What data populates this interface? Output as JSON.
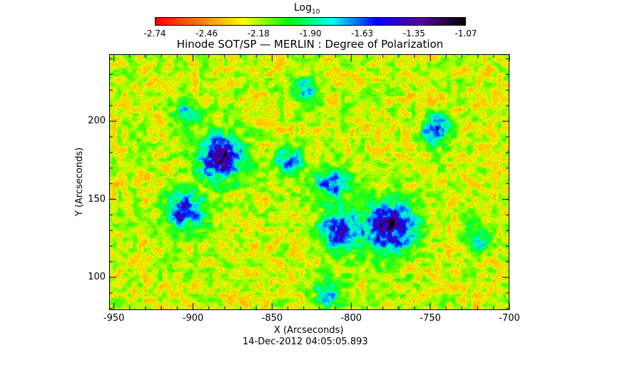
{
  "chart_data": {
    "type": "heatmap",
    "title": "Hinode SOT/SP — MERLIN : Degree of Polarization",
    "xlabel": "X (Arcseconds)",
    "ylabel": "Y (Arcseconds)",
    "xlim": [
      -953,
      -700
    ],
    "ylim": [
      79,
      243
    ],
    "xticks": [
      "-950",
      "-900",
      "-850",
      "-800",
      "-750",
      "-700"
    ],
    "xtick_values": [
      -950,
      -900,
      -850,
      -800,
      -750,
      -700
    ],
    "yticks": [
      "100",
      "150",
      "200"
    ],
    "ytick_values": [
      100,
      150,
      200
    ],
    "colorbar": {
      "label": "Log",
      "label_sub": "10",
      "range": [
        -2.74,
        -1.07
      ],
      "ticks": [
        "-2.74",
        "-2.46",
        "-2.18",
        "-1.90",
        "-1.63",
        "-1.35",
        "-1.07"
      ],
      "colors": [
        "#ff0000",
        "#ff7a00",
        "#ffff00",
        "#00ff00",
        "#00ffff",
        "#0000ff",
        "#5a00a0",
        "#000000"
      ]
    },
    "features": [
      {
        "x": -883,
        "y": 177,
        "strength": 1.0,
        "size": 14
      },
      {
        "x": -905,
        "y": 143,
        "strength": 0.8,
        "size": 12
      },
      {
        "x": -776,
        "y": 132,
        "strength": 1.0,
        "size": 16
      },
      {
        "x": -808,
        "y": 130,
        "strength": 0.85,
        "size": 12
      },
      {
        "x": -812,
        "y": 160,
        "strength": 0.7,
        "size": 10
      },
      {
        "x": -746,
        "y": 195,
        "strength": 0.75,
        "size": 9
      },
      {
        "x": -840,
        "y": 175,
        "strength": 0.6,
        "size": 9
      },
      {
        "x": -815,
        "y": 90,
        "strength": 0.6,
        "size": 9
      },
      {
        "x": -830,
        "y": 220,
        "strength": 0.5,
        "size": 8
      },
      {
        "x": -905,
        "y": 205,
        "strength": 0.5,
        "size": 8
      },
      {
        "x": -720,
        "y": 125,
        "strength": 0.5,
        "size": 8
      }
    ],
    "timestamp": "14-Dec-2012 04:05:05.893"
  }
}
